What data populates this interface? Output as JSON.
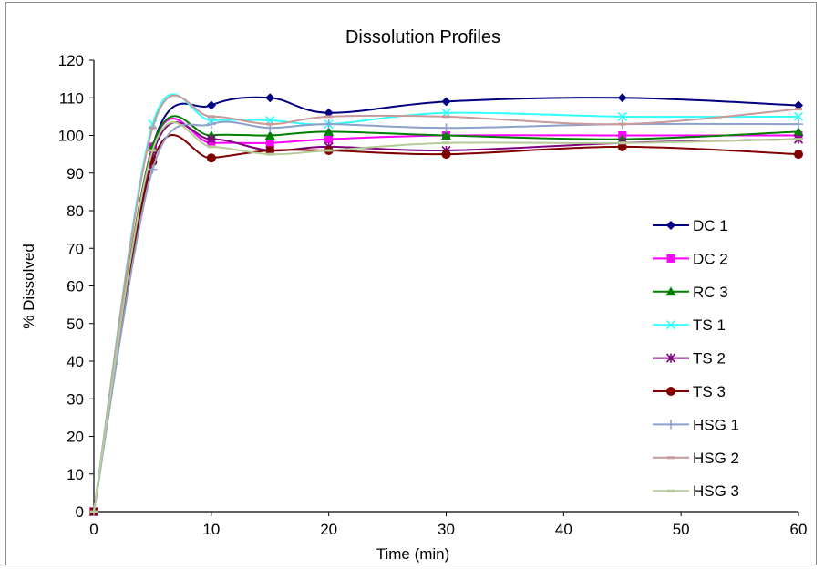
{
  "chart_data": {
    "type": "line",
    "title": "Dissolution Profiles",
    "xlabel": "Time (min)",
    "ylabel": "% Dissolved",
    "xlim": [
      0,
      60
    ],
    "ylim": [
      0,
      120
    ],
    "xticks": [
      0,
      10,
      20,
      30,
      40,
      50,
      60
    ],
    "yticks": [
      0,
      10,
      20,
      30,
      40,
      50,
      60,
      70,
      80,
      90,
      100,
      110,
      120
    ],
    "grid": false,
    "legend_position": "right",
    "x": [
      0,
      5,
      10,
      15,
      20,
      30,
      45,
      60
    ],
    "series": [
      {
        "name": "DC 1",
        "color": "#000080",
        "marker": "diamond",
        "values": [
          0,
          97,
          108,
          110,
          106,
          109,
          110,
          108
        ]
      },
      {
        "name": "DC 2",
        "color": "#ff00ff",
        "marker": "square",
        "values": [
          0,
          97,
          98,
          98,
          99,
          100,
          100,
          100
        ]
      },
      {
        "name": "RC 3",
        "color": "#008000",
        "marker": "triangle",
        "values": [
          0,
          97,
          100,
          100,
          101,
          100,
          99,
          101
        ]
      },
      {
        "name": "TS 1",
        "color": "#33ffff",
        "marker": "x",
        "values": [
          0,
          103,
          104,
          104,
          103,
          106,
          105,
          105
        ]
      },
      {
        "name": "TS 2",
        "color": "#800080",
        "marker": "star",
        "values": [
          0,
          95,
          99,
          96,
          97,
          96,
          98,
          99
        ]
      },
      {
        "name": "TS 3",
        "color": "#800000",
        "marker": "circle",
        "values": [
          0,
          93,
          94,
          96,
          96,
          95,
          97,
          95
        ]
      },
      {
        "name": "HSG 1",
        "color": "#8da0cb",
        "marker": "plus",
        "values": [
          0,
          91,
          103,
          102,
          103,
          102,
          103,
          103
        ]
      },
      {
        "name": "HSG 2",
        "color": "#c89a9a",
        "marker": "dash",
        "values": [
          0,
          102,
          105,
          103,
          105,
          105,
          103,
          107
        ]
      },
      {
        "name": "HSG 3",
        "color": "#b5cc98",
        "marker": "dash",
        "values": [
          0,
          96,
          97,
          95,
          96,
          98,
          98,
          99
        ]
      }
    ]
  }
}
